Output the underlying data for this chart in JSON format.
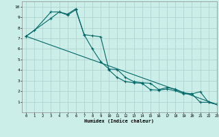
{
  "xlabel": "Humidex (Indice chaleur)",
  "ylabel": "",
  "bg_color": "#cceee8",
  "grid_color": "#aacccc",
  "line_color": "#006666",
  "xlim": [
    -0.5,
    23
  ],
  "ylim": [
    0,
    10.5
  ],
  "xticks": [
    0,
    1,
    2,
    3,
    4,
    5,
    6,
    7,
    8,
    9,
    10,
    11,
    12,
    13,
    14,
    15,
    16,
    17,
    18,
    19,
    20,
    21,
    22,
    23
  ],
  "yticks": [
    1,
    2,
    3,
    4,
    5,
    6,
    7,
    8,
    9,
    10
  ],
  "line1_x": [
    0,
    1,
    3,
    4,
    5,
    6,
    7,
    8,
    9,
    10,
    11,
    12,
    13,
    14,
    15,
    16,
    17,
    18,
    19,
    20,
    21,
    22,
    23
  ],
  "line1_y": [
    7.2,
    7.75,
    9.5,
    9.5,
    9.2,
    9.7,
    7.35,
    6.0,
    4.8,
    4.1,
    4.05,
    3.3,
    2.9,
    2.8,
    2.75,
    2.15,
    2.35,
    2.2,
    1.85,
    1.75,
    1.95,
    0.95,
    0.75
  ],
  "line2_x": [
    0,
    3,
    4,
    5,
    6,
    7,
    8,
    9,
    10,
    11,
    12,
    13,
    14,
    15,
    16,
    17,
    18,
    19,
    20,
    21,
    22,
    23
  ],
  "line2_y": [
    7.2,
    8.9,
    9.5,
    9.3,
    9.8,
    7.35,
    7.25,
    7.15,
    4.0,
    3.3,
    2.9,
    2.8,
    2.75,
    2.15,
    2.1,
    2.2,
    2.05,
    1.75,
    1.75,
    0.95,
    0.95,
    0.75
  ],
  "line3_x": [
    0,
    23
  ],
  "line3_y": [
    7.2,
    0.75
  ]
}
